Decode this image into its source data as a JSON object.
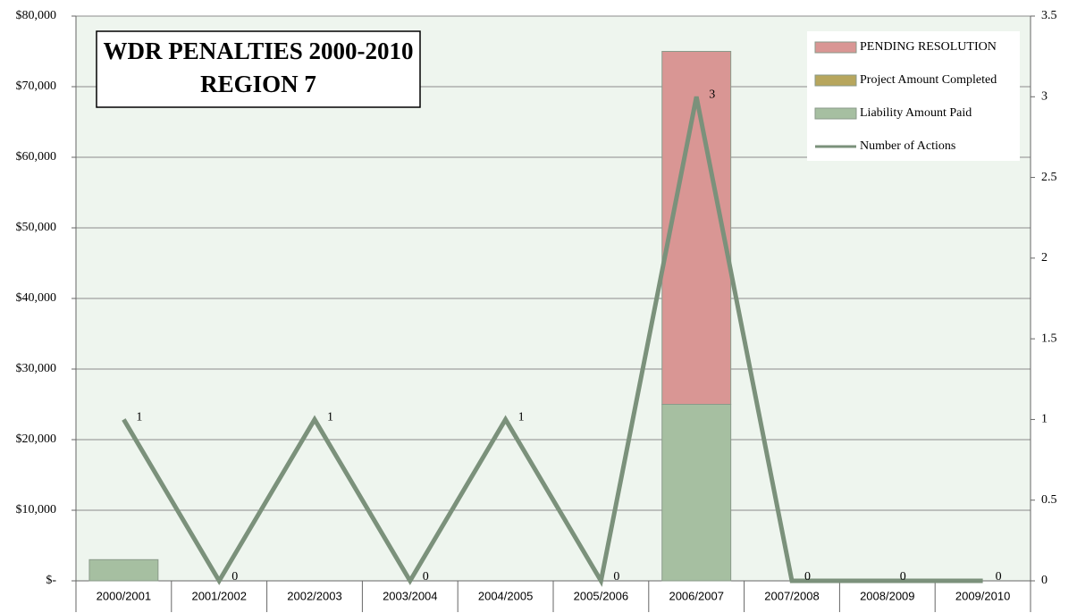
{
  "chart_data": {
    "type": "bar",
    "stacked": true,
    "title": "WDR PENALTIES 2000-2010",
    "subtitle": "REGION 7",
    "categories": [
      "2000/2001",
      "2001/2002",
      "2002/2003",
      "2003/2004",
      "2004/2005",
      "2005/2006",
      "2006/2007",
      "2007/2008",
      "2008/2009",
      "2009/2010"
    ],
    "series": [
      {
        "name": "Liability Amount Paid",
        "type": "bar",
        "color": "#a6bfa1",
        "values": [
          3000,
          0,
          0,
          0,
          0,
          0,
          25000,
          0,
          0,
          0
        ]
      },
      {
        "name": "Project Amount Completed",
        "type": "bar",
        "color": "#b7a65d",
        "values": [
          0,
          0,
          0,
          0,
          0,
          0,
          0,
          0,
          0,
          0
        ]
      },
      {
        "name": "PENDING RESOLUTION",
        "type": "bar",
        "color": "#d99694",
        "values": [
          0,
          0,
          0,
          0,
          0,
          0,
          50000,
          0,
          0,
          0
        ]
      },
      {
        "name": "Number of Actions",
        "type": "line",
        "axis": "y2",
        "color": "#7b917b",
        "values": [
          1,
          0,
          1,
          0,
          1,
          0,
          3,
          0,
          0,
          0
        ]
      }
    ],
    "legend_order": [
      2,
      1,
      0,
      3
    ],
    "ylim": [
      0,
      80000
    ],
    "yticks": [
      {
        "value": 0,
        "label": "$-"
      },
      {
        "value": 10000,
        "label": "$10,000"
      },
      {
        "value": 20000,
        "label": "$20,000"
      },
      {
        "value": 30000,
        "label": "$30,000"
      },
      {
        "value": 40000,
        "label": "$40,000"
      },
      {
        "value": 50000,
        "label": "$50,000"
      },
      {
        "value": 60000,
        "label": "$60,000"
      },
      {
        "value": 70000,
        "label": "$70,000"
      },
      {
        "value": 80000,
        "label": "$80,000"
      }
    ],
    "y2lim": [
      0,
      3.5
    ],
    "y2ticks": [
      0,
      0.5,
      1,
      1.5,
      2,
      2.5,
      3,
      3.5
    ],
    "grid": true,
    "legend": "upper right"
  }
}
